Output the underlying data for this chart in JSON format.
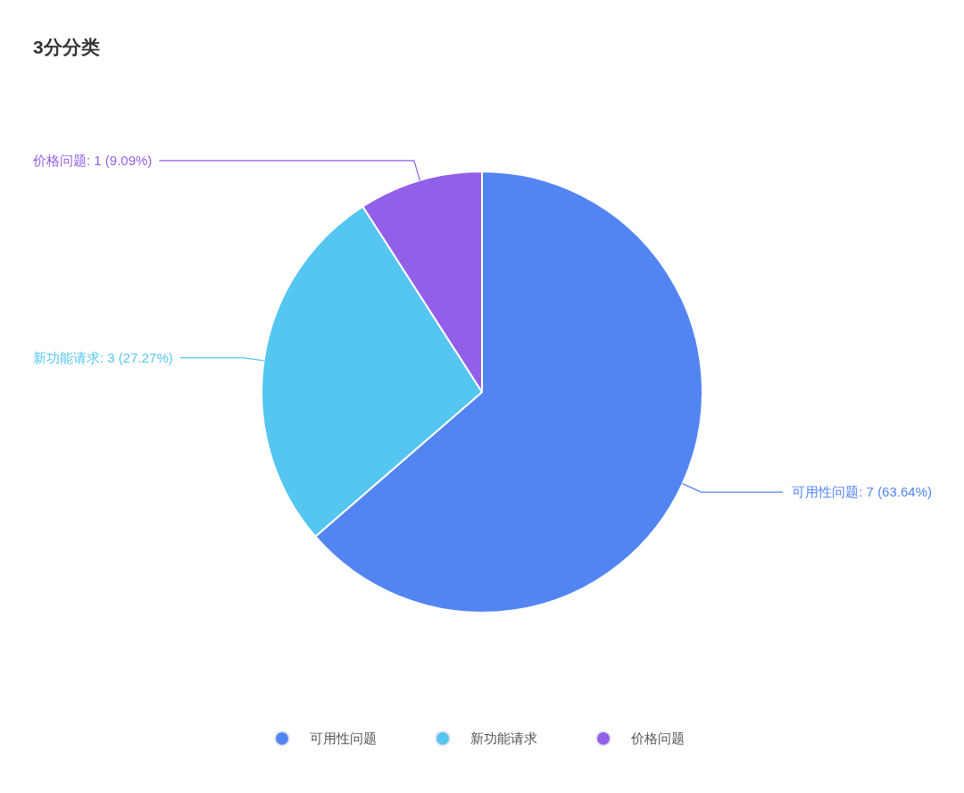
{
  "chart_data": {
    "type": "pie",
    "title": "3分分类",
    "categories": [
      "可用性问题",
      "新功能请求",
      "价格问题"
    ],
    "values": [
      7,
      3,
      1
    ],
    "colors": [
      "#5385f2",
      "#55c6f0",
      "#925fe8"
    ],
    "value_labels": [
      "可用性问题: 7 (63.64%)",
      "新功能请求: 3 (27.27%)",
      "价格问题: 1 (9.09%)"
    ],
    "legend": "bottom"
  }
}
